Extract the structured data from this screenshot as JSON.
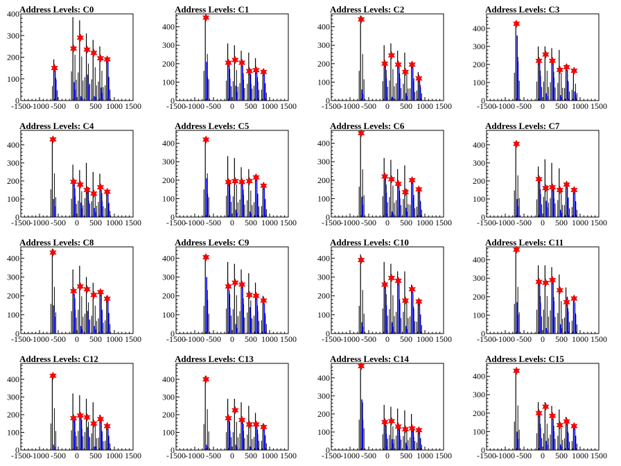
{
  "chart_data": [
    {
      "type": "bar",
      "title": "Address Levels: C0",
      "xlim": [
        -1500,
        1500
      ],
      "ylim": [
        0,
        400
      ],
      "xticks": [
        "-1500",
        "-1000",
        "-500",
        "0",
        "500",
        "1000",
        "1500"
      ],
      "yticks": [
        "0",
        "100",
        "200",
        "300",
        "400"
      ],
      "peaks": [
        {
          "x": -600,
          "black": 190,
          "blue": 160,
          "marker": 150
        },
        {
          "x": -90,
          "black": 385,
          "blue": 85,
          "marker": 240
        },
        {
          "x": 90,
          "black": 370,
          "blue": 20,
          "marker": 290
        },
        {
          "x": 270,
          "black": 310,
          "blue": 120,
          "marker": 235
        },
        {
          "x": 450,
          "black": 280,
          "blue": 20,
          "marker": 220
        },
        {
          "x": 630,
          "black": 250,
          "blue": 60,
          "marker": 195
        },
        {
          "x": 810,
          "black": 200,
          "blue": 180,
          "marker": 190
        }
      ]
    },
    {
      "type": "bar",
      "title": "Address Levels: C1",
      "xlim": [
        -1500,
        1500
      ],
      "ylim": [
        0,
        470
      ],
      "xticks": [
        "-1500",
        "-1000",
        "-500",
        "0",
        "500",
        "1000",
        "1500"
      ],
      "yticks": [
        "0",
        "100",
        "200",
        "300",
        "400"
      ],
      "peaks": [
        {
          "x": -700,
          "black": 460,
          "blue": 210,
          "marker": 450
        },
        {
          "x": -100,
          "black": 310,
          "blue": 200,
          "marker": 205
        },
        {
          "x": 80,
          "black": 300,
          "blue": 80,
          "marker": 220
        },
        {
          "x": 260,
          "black": 270,
          "blue": 190,
          "marker": 205
        },
        {
          "x": 460,
          "black": 260,
          "blue": 150,
          "marker": 160
        },
        {
          "x": 640,
          "black": 230,
          "blue": 170,
          "marker": 165
        },
        {
          "x": 840,
          "black": 170,
          "blue": 155,
          "marker": 155
        }
      ]
    },
    {
      "type": "bar",
      "title": "Address Levels: C2",
      "xlim": [
        -1500,
        1500
      ],
      "ylim": [
        0,
        470
      ],
      "xticks": [
        "-1500",
        "-1000",
        "-500",
        "0",
        "500",
        "1000",
        "1500"
      ],
      "yticks": [
        "0",
        "100",
        "200",
        "300",
        "400"
      ],
      "peaks": [
        {
          "x": -700,
          "black": 460,
          "blue": 60,
          "marker": 440
        },
        {
          "x": -70,
          "black": 300,
          "blue": 200,
          "marker": 200
        },
        {
          "x": 110,
          "black": 310,
          "blue": 20,
          "marker": 245
        },
        {
          "x": 290,
          "black": 270,
          "blue": 200,
          "marker": 195
        },
        {
          "x": 480,
          "black": 260,
          "blue": 40,
          "marker": 155
        },
        {
          "x": 660,
          "black": 190,
          "blue": 200,
          "marker": 195
        },
        {
          "x": 840,
          "black": 155,
          "blue": 120,
          "marker": 120
        }
      ]
    },
    {
      "type": "bar",
      "title": "Address Levels: C3",
      "xlim": [
        -1500,
        1500
      ],
      "ylim": [
        0,
        480
      ],
      "xticks": [
        "-1500",
        "-1000",
        "-500",
        "0",
        "500",
        "1000",
        "1500"
      ],
      "yticks": [
        "0",
        "100",
        "200",
        "300",
        "400"
      ],
      "peaks": [
        {
          "x": -700,
          "black": 440,
          "blue": 360,
          "marker": 425
        },
        {
          "x": -100,
          "black": 300,
          "blue": 225,
          "marker": 220
        },
        {
          "x": 80,
          "black": 300,
          "blue": 40,
          "marker": 255
        },
        {
          "x": 260,
          "black": 290,
          "blue": 210,
          "marker": 220
        },
        {
          "x": 460,
          "black": 280,
          "blue": 30,
          "marker": 170
        },
        {
          "x": 640,
          "black": 200,
          "blue": 170,
          "marker": 185
        },
        {
          "x": 840,
          "black": 170,
          "blue": 50,
          "marker": 165
        }
      ]
    },
    {
      "type": "bar",
      "title": "Address Levels: C4",
      "xlim": [
        -1500,
        1500
      ],
      "ylim": [
        0,
        480
      ],
      "xticks": [
        "-1500",
        "-1000",
        "-500",
        "0",
        "500",
        "1000",
        "1500"
      ],
      "yticks": [
        "0",
        "100",
        "200",
        "300",
        "400"
      ],
      "peaks": [
        {
          "x": -640,
          "black": 440,
          "blue": 100,
          "marker": 430
        },
        {
          "x": -90,
          "black": 290,
          "blue": 190,
          "marker": 195
        },
        {
          "x": 90,
          "black": 260,
          "blue": 80,
          "marker": 180
        },
        {
          "x": 270,
          "black": 300,
          "blue": 150,
          "marker": 150
        },
        {
          "x": 450,
          "black": 250,
          "blue": 50,
          "marker": 130
        },
        {
          "x": 630,
          "black": 240,
          "blue": 150,
          "marker": 165
        },
        {
          "x": 810,
          "black": 140,
          "blue": 130,
          "marker": 140
        }
      ]
    },
    {
      "type": "bar",
      "title": "Address Levels: C5",
      "xlim": [
        -1500,
        1500
      ],
      "ylim": [
        0,
        470
      ],
      "xticks": [
        "-1500",
        "-1000",
        "-500",
        "0",
        "500",
        "1000",
        "1500"
      ],
      "yticks": [
        "0",
        "100",
        "200",
        "300",
        "400"
      ],
      "peaks": [
        {
          "x": -700,
          "black": 430,
          "blue": 210,
          "marker": 420
        },
        {
          "x": -100,
          "black": 330,
          "blue": 200,
          "marker": 190
        },
        {
          "x": 80,
          "black": 320,
          "blue": 40,
          "marker": 195
        },
        {
          "x": 260,
          "black": 270,
          "blue": 200,
          "marker": 190
        },
        {
          "x": 460,
          "black": 260,
          "blue": 30,
          "marker": 195
        },
        {
          "x": 640,
          "black": 230,
          "blue": 210,
          "marker": 215
        },
        {
          "x": 840,
          "black": 170,
          "blue": 165,
          "marker": 170
        }
      ]
    },
    {
      "type": "bar",
      "title": "Address Levels: C6",
      "xlim": [
        -1500,
        1500
      ],
      "ylim": [
        0,
        470
      ],
      "xticks": [
        "-1500",
        "-1000",
        "-500",
        "0",
        "500",
        "1000",
        "1500"
      ],
      "yticks": [
        "0",
        "100",
        "200",
        "300",
        "400"
      ],
      "peaks": [
        {
          "x": -700,
          "black": 470,
          "blue": 110,
          "marker": 455
        },
        {
          "x": -70,
          "black": 320,
          "blue": 220,
          "marker": 220
        },
        {
          "x": 110,
          "black": 310,
          "blue": 30,
          "marker": 205
        },
        {
          "x": 290,
          "black": 260,
          "blue": 170,
          "marker": 180
        },
        {
          "x": 480,
          "black": 280,
          "blue": 50,
          "marker": 135
        },
        {
          "x": 660,
          "black": 190,
          "blue": 200,
          "marker": 200
        },
        {
          "x": 840,
          "black": 160,
          "blue": 140,
          "marker": 150
        }
      ]
    },
    {
      "type": "bar",
      "title": "Address Levels: C7",
      "xlim": [
        -1500,
        1500
      ],
      "ylim": [
        0,
        480
      ],
      "xticks": [
        "-1500",
        "-1000",
        "-500",
        "0",
        "500",
        "1000",
        "1500"
      ],
      "yticks": [
        "0",
        "100",
        "200",
        "300",
        "400"
      ],
      "peaks": [
        {
          "x": -700,
          "black": 420,
          "blue": 100,
          "marker": 405
        },
        {
          "x": -100,
          "black": 280,
          "blue": 210,
          "marker": 210
        },
        {
          "x": 80,
          "black": 320,
          "blue": 90,
          "marker": 160
        },
        {
          "x": 260,
          "black": 300,
          "blue": 170,
          "marker": 165
        },
        {
          "x": 460,
          "black": 270,
          "blue": 40,
          "marker": 150
        },
        {
          "x": 640,
          "black": 190,
          "blue": 180,
          "marker": 180
        },
        {
          "x": 840,
          "black": 160,
          "blue": 140,
          "marker": 150
        }
      ]
    },
    {
      "type": "bar",
      "title": "Address Levels: C8",
      "xlim": [
        -1500,
        1500
      ],
      "ylim": [
        0,
        460
      ],
      "xticks": [
        "-1500",
        "-1000",
        "-500",
        "0",
        "500",
        "1000",
        "1500"
      ],
      "yticks": [
        "0",
        "100",
        "200",
        "300",
        "400"
      ],
      "peaks": [
        {
          "x": -640,
          "black": 450,
          "blue": 150,
          "marker": 430
        },
        {
          "x": -90,
          "black": 340,
          "blue": 210,
          "marker": 225
        },
        {
          "x": 90,
          "black": 360,
          "blue": 40,
          "marker": 250
        },
        {
          "x": 270,
          "black": 300,
          "blue": 120,
          "marker": 235
        },
        {
          "x": 450,
          "black": 270,
          "blue": 40,
          "marker": 205
        },
        {
          "x": 630,
          "black": 230,
          "blue": 210,
          "marker": 220
        },
        {
          "x": 810,
          "black": 200,
          "blue": 180,
          "marker": 185
        }
      ]
    },
    {
      "type": "bar",
      "title": "Address Levels: C9",
      "xlim": [
        -1500,
        1500
      ],
      "ylim": [
        0,
        460
      ],
      "xticks": [
        "-1500",
        "-1000",
        "-500",
        "0",
        "500",
        "1000",
        "1500"
      ],
      "yticks": [
        "0",
        "100",
        "200",
        "300",
        "400"
      ],
      "peaks": [
        {
          "x": -700,
          "black": 420,
          "blue": 300,
          "marker": 405
        },
        {
          "x": -100,
          "black": 380,
          "blue": 230,
          "marker": 250
        },
        {
          "x": 80,
          "black": 370,
          "blue": 50,
          "marker": 270
        },
        {
          "x": 260,
          "black": 340,
          "blue": 260,
          "marker": 260
        },
        {
          "x": 460,
          "black": 320,
          "blue": 140,
          "marker": 205
        },
        {
          "x": 640,
          "black": 270,
          "blue": 200,
          "marker": 200
        },
        {
          "x": 840,
          "black": 200,
          "blue": 160,
          "marker": 175
        }
      ]
    },
    {
      "type": "bar",
      "title": "Address Levels: C10",
      "xlim": [
        -1500,
        1500
      ],
      "ylim": [
        0,
        460
      ],
      "xticks": [
        "-1500",
        "-1000",
        "-500",
        "0",
        "500",
        "1000",
        "1500"
      ],
      "yticks": [
        "0",
        "100",
        "200",
        "300",
        "400"
      ],
      "peaks": [
        {
          "x": -700,
          "black": 420,
          "blue": 60,
          "marker": 390
        },
        {
          "x": -70,
          "black": 380,
          "blue": 250,
          "marker": 260
        },
        {
          "x": 110,
          "black": 370,
          "blue": 60,
          "marker": 295
        },
        {
          "x": 290,
          "black": 330,
          "blue": 270,
          "marker": 280
        },
        {
          "x": 480,
          "black": 330,
          "blue": 40,
          "marker": 175
        },
        {
          "x": 660,
          "black": 260,
          "blue": 220,
          "marker": 235
        },
        {
          "x": 840,
          "black": 180,
          "blue": 170,
          "marker": 170
        }
      ]
    },
    {
      "type": "bar",
      "title": "Address Levels: C11",
      "xlim": [
        -1500,
        1500
      ],
      "ylim": [
        0,
        470
      ],
      "xticks": [
        "-1500",
        "-1000",
        "-500",
        "0",
        "500",
        "1000",
        "1500"
      ],
      "yticks": [
        "0",
        "100",
        "200",
        "300",
        "400"
      ],
      "peaks": [
        {
          "x": -700,
          "black": 460,
          "blue": 170,
          "marker": 455
        },
        {
          "x": -100,
          "black": 370,
          "blue": 280,
          "marker": 280
        },
        {
          "x": 80,
          "black": 370,
          "blue": 30,
          "marker": 275
        },
        {
          "x": 260,
          "black": 360,
          "blue": 290,
          "marker": 290
        },
        {
          "x": 460,
          "black": 320,
          "blue": 50,
          "marker": 235
        },
        {
          "x": 640,
          "black": 250,
          "blue": 200,
          "marker": 170
        },
        {
          "x": 840,
          "black": 200,
          "blue": 170,
          "marker": 190
        }
      ]
    },
    {
      "type": "bar",
      "title": "Address Levels: C12",
      "xlim": [
        -1500,
        1500
      ],
      "ylim": [
        0,
        490
      ],
      "xticks": [
        "-1500",
        "-1000",
        "-500",
        "0",
        "500",
        "1000",
        "1500"
      ],
      "yticks": [
        "0",
        "100",
        "200",
        "300",
        "400"
      ],
      "peaks": [
        {
          "x": -640,
          "black": 430,
          "blue": 30,
          "marker": 420
        },
        {
          "x": -90,
          "black": 320,
          "blue": 170,
          "marker": 180
        },
        {
          "x": 90,
          "black": 310,
          "blue": 200,
          "marker": 195
        },
        {
          "x": 270,
          "black": 290,
          "blue": 130,
          "marker": 185
        },
        {
          "x": 450,
          "black": 270,
          "blue": 20,
          "marker": 150
        },
        {
          "x": 630,
          "black": 200,
          "blue": 170,
          "marker": 175
        },
        {
          "x": 810,
          "black": 150,
          "blue": 130,
          "marker": 135
        }
      ]
    },
    {
      "type": "bar",
      "title": "Address Levels: C13",
      "xlim": [
        -1500,
        1500
      ],
      "ylim": [
        0,
        490
      ],
      "xticks": [
        "-1500",
        "-1000",
        "-500",
        "0",
        "500",
        "1000",
        "1500"
      ],
      "yticks": [
        "0",
        "100",
        "200",
        "300",
        "400"
      ],
      "peaks": [
        {
          "x": -700,
          "black": 420,
          "blue": 30,
          "marker": 400
        },
        {
          "x": -100,
          "black": 290,
          "blue": 180,
          "marker": 180
        },
        {
          "x": 80,
          "black": 290,
          "blue": 30,
          "marker": 225
        },
        {
          "x": 260,
          "black": 270,
          "blue": 180,
          "marker": 170
        },
        {
          "x": 460,
          "black": 250,
          "blue": 20,
          "marker": 145
        },
        {
          "x": 640,
          "black": 210,
          "blue": 150,
          "marker": 145
        },
        {
          "x": 840,
          "black": 150,
          "blue": 140,
          "marker": 130
        }
      ]
    },
    {
      "type": "bar",
      "title": "Address Levels: C14",
      "xlim": [
        -1500,
        1500
      ],
      "ylim": [
        0,
        480
      ],
      "xticks": [
        "-1500",
        "-1000",
        "-500",
        "0",
        "500",
        "1000",
        "1500"
      ],
      "yticks": [
        "0",
        "100",
        "200",
        "300",
        "400"
      ],
      "peaks": [
        {
          "x": -700,
          "black": 480,
          "blue": 280,
          "marker": 465
        },
        {
          "x": -70,
          "black": 250,
          "blue": 150,
          "marker": 155
        },
        {
          "x": 110,
          "black": 240,
          "blue": 60,
          "marker": 160
        },
        {
          "x": 290,
          "black": 230,
          "blue": 130,
          "marker": 130
        },
        {
          "x": 480,
          "black": 220,
          "blue": 40,
          "marker": 115
        },
        {
          "x": 660,
          "black": 200,
          "blue": 120,
          "marker": 120
        },
        {
          "x": 840,
          "black": 120,
          "blue": 110,
          "marker": 110
        }
      ]
    },
    {
      "type": "bar",
      "title": "Address Levels: C15",
      "xlim": [
        -1500,
        1500
      ],
      "ylim": [
        0,
        470
      ],
      "xticks": [
        "-1500",
        "-1000",
        "-500",
        "0",
        "500",
        "1000",
        "1500"
      ],
      "yticks": [
        "0",
        "100",
        "200",
        "300",
        "400"
      ],
      "peaks": [
        {
          "x": -700,
          "black": 440,
          "blue": 100,
          "marker": 430
        },
        {
          "x": -100,
          "black": 260,
          "blue": 200,
          "marker": 200
        },
        {
          "x": 80,
          "black": 260,
          "blue": 50,
          "marker": 235
        },
        {
          "x": 260,
          "black": 240,
          "blue": 170,
          "marker": 185
        },
        {
          "x": 460,
          "black": 220,
          "blue": 30,
          "marker": 135
        },
        {
          "x": 640,
          "black": 180,
          "blue": 150,
          "marker": 155
        },
        {
          "x": 840,
          "black": 140,
          "blue": 130,
          "marker": 130
        }
      ]
    }
  ],
  "colors": {
    "black_hist": "#000000",
    "blue_hist": "#0000ff",
    "marker": "#ff0000",
    "axis": "#000000"
  }
}
